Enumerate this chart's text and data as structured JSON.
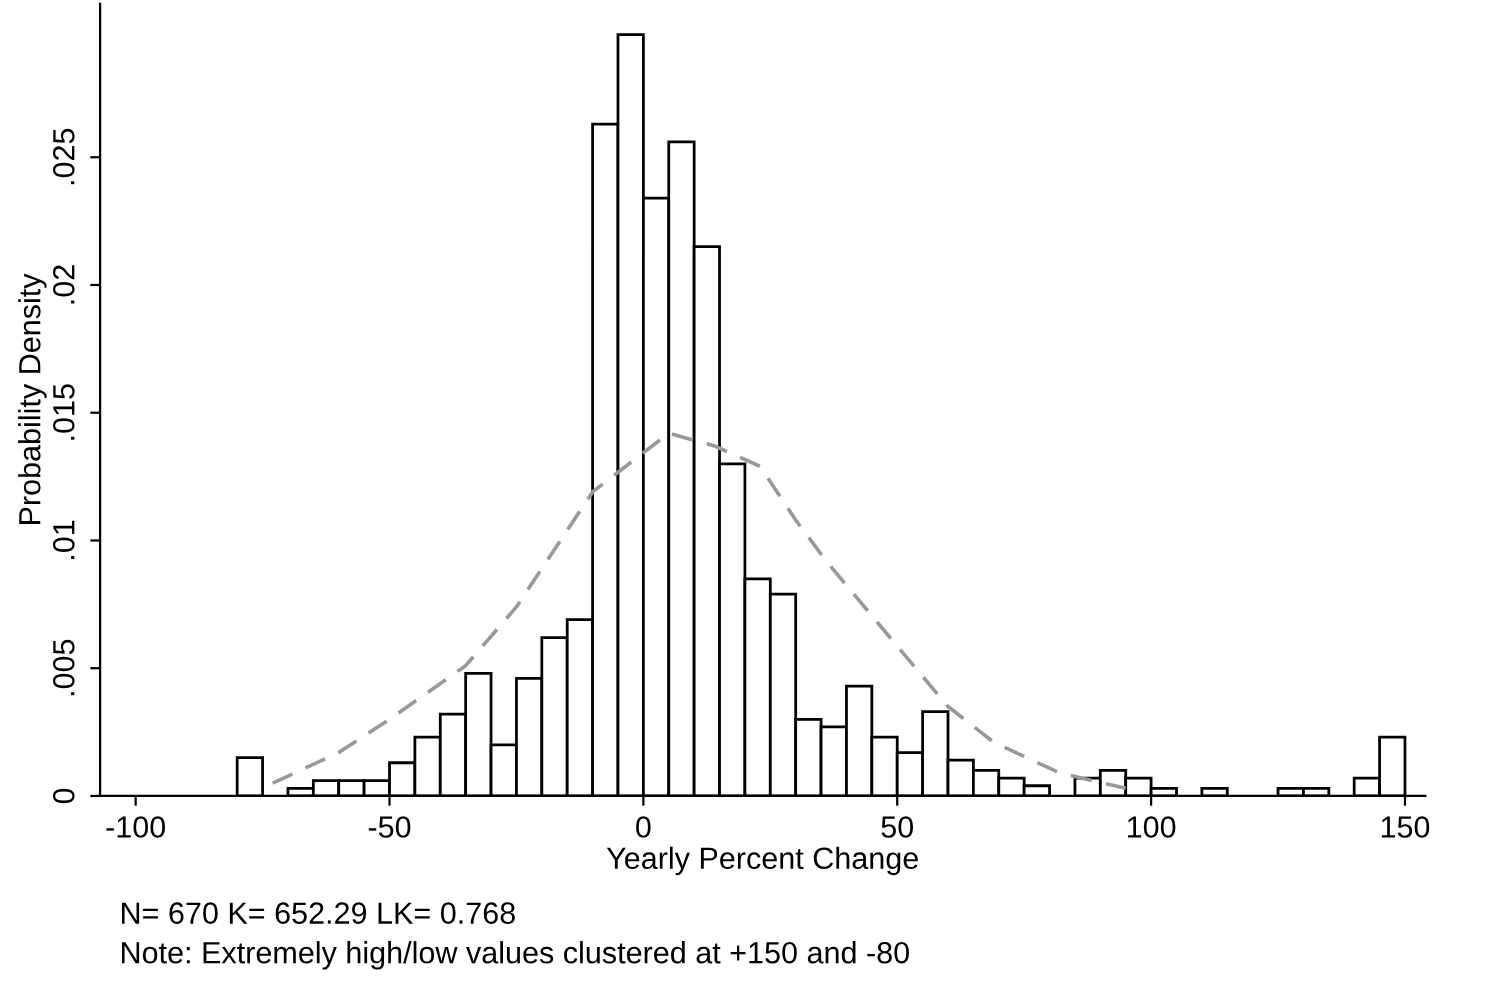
{
  "chart_data": {
    "type": "histogram",
    "xlabel": "Yearly Percent Change",
    "ylabel": "Probability Density",
    "annotations": [
      "N= 670 K= 652.29 LK= 0.768",
      "Note: Extremely high/low values clustered at +150 and -80"
    ],
    "series": [
      {
        "type": "histogram",
        "color": "#ffffff",
        "bins": [
          -80,
          -75,
          -70,
          -65,
          -60,
          -55,
          -50,
          -45,
          -40,
          -35,
          -30,
          -25,
          -20,
          -15,
          -10,
          -5,
          0,
          5,
          10,
          15,
          20,
          25,
          30,
          35,
          40,
          45,
          50,
          55,
          60,
          65,
          70,
          75,
          80,
          85,
          90,
          95,
          100,
          105,
          110,
          115,
          120,
          125,
          130,
          135,
          140,
          145,
          150
        ],
        "values": [
          0.0015,
          0,
          0.0003,
          0.0006,
          0.0006,
          0.0006,
          0.0013,
          0.0023,
          0.0032,
          0.0048,
          0.002,
          0.0046,
          0.0062,
          0.0069,
          0.0263,
          0.0298,
          0.0234,
          0.0256,
          0.0215,
          0.013,
          0.0085,
          0.0079,
          0.003,
          0.0027,
          0.0043,
          0.0023,
          0.0017,
          0.0033,
          0.0014,
          0.001,
          0.0007,
          0.0004,
          0,
          0.0007,
          0.001,
          0.0007,
          0.0003,
          0,
          0.0003,
          0,
          0,
          0.0003,
          0.0003,
          0,
          0.0007,
          0.0023
        ]
      },
      {
        "type": "line",
        "color": "#999999",
        "line_style": "dashed",
        "x": [
          -73,
          -60,
          -50,
          -35,
          -25,
          -10,
          5,
          14,
          23,
          30,
          36,
          49,
          60,
          69,
          82,
          95
        ],
        "values": [
          0.0005,
          0.0017,
          0.003,
          0.0051,
          0.0074,
          0.0119,
          0.0142,
          0.0137,
          0.0129,
          0.0108,
          0.0092,
          0.0061,
          0.0035,
          0.0021,
          0.0009,
          0.0003
        ]
      }
    ],
    "xlim": [
      -107,
      154
    ],
    "ylim": [
      0,
      0.031
    ],
    "xticks": [
      -100,
      -50,
      0,
      50,
      100,
      150
    ],
    "yticks": [
      {
        "value": 0,
        "label": "0"
      },
      {
        "value": 0.005,
        "label": ".005"
      },
      {
        "value": 0.01,
        "label": ".01"
      },
      {
        "value": 0.015,
        "label": ".015"
      },
      {
        "value": 0.02,
        "label": ".02"
      },
      {
        "value": 0.025,
        "label": ".025"
      }
    ],
    "grid": false,
    "legend": false
  }
}
